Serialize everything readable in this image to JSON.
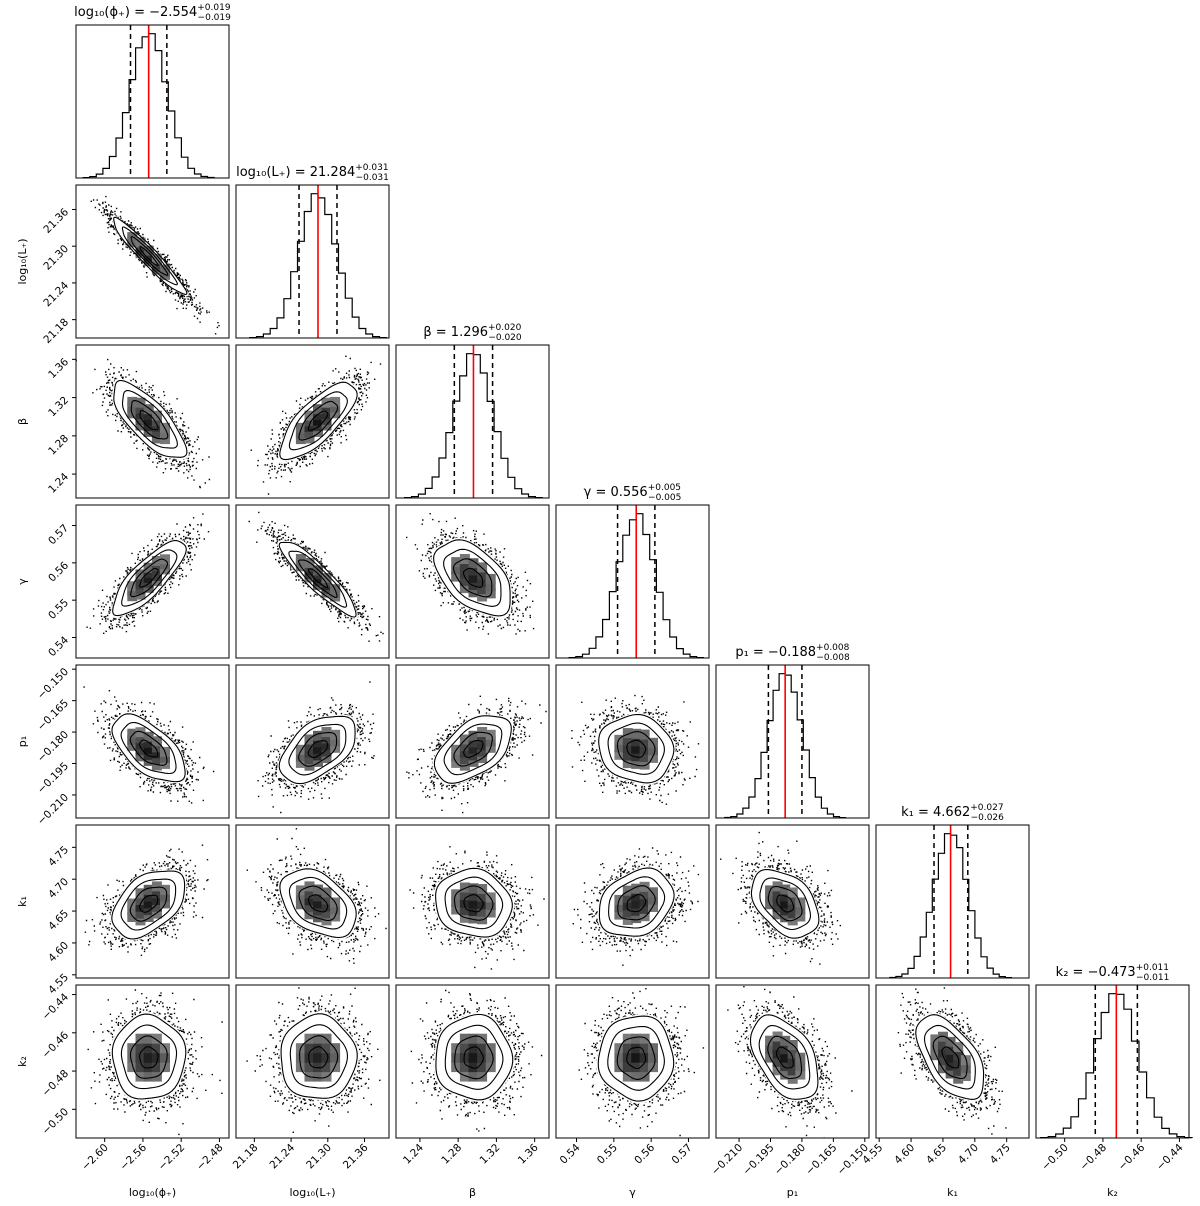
{
  "chart_data": {
    "type": "corner",
    "parameters": [
      {
        "axis_label": "log₁₀(ϕ₊)",
        "title_name": "log₁₀(ϕ₊)",
        "value": "−2.554",
        "plus": "+0.019",
        "minus": "−0.019",
        "median": -2.554,
        "q16": -2.573,
        "q84": -2.535,
        "sigma": 0.019,
        "range": [
          -2.63,
          -2.47
        ],
        "ticks": [
          -2.6,
          -2.56,
          -2.52,
          -2.48
        ],
        "tick_labels": [
          "−2.60",
          "−2.56",
          "−2.52",
          "−2.48"
        ]
      },
      {
        "axis_label": "log₁₀(L₊)",
        "title_name": "log₁₀(L₊)",
        "value": "21.284",
        "plus": "+0.031",
        "minus": "−0.031",
        "median": 21.284,
        "q16": 21.253,
        "q84": 21.315,
        "sigma": 0.031,
        "range": [
          21.15,
          21.4
        ],
        "ticks": [
          21.18,
          21.24,
          21.3,
          21.36
        ],
        "tick_labels": [
          "21.18",
          "21.24",
          "21.30",
          "21.36"
        ]
      },
      {
        "axis_label": "β",
        "title_name": "β",
        "value": "1.296",
        "plus": "+0.020",
        "minus": "−0.020",
        "median": 1.296,
        "q16": 1.276,
        "q84": 1.316,
        "sigma": 0.02,
        "range": [
          1.215,
          1.375
        ],
        "ticks": [
          1.24,
          1.28,
          1.32,
          1.36
        ],
        "tick_labels": [
          "1.24",
          "1.28",
          "1.32",
          "1.36"
        ]
      },
      {
        "axis_label": "γ",
        "title_name": "γ",
        "value": "0.556",
        "plus": "+0.005",
        "minus": "−0.005",
        "median": 0.556,
        "q16": 0.551,
        "q84": 0.561,
        "sigma": 0.005,
        "range": [
          0.5345,
          0.5755
        ],
        "ticks": [
          0.54,
          0.55,
          0.56,
          0.57
        ],
        "tick_labels": [
          "0.54",
          "0.55",
          "0.56",
          "0.57"
        ]
      },
      {
        "axis_label": "p₁",
        "title_name": "p₁",
        "value": "−0.188",
        "plus": "+0.008",
        "minus": "−0.008",
        "median": -0.188,
        "q16": -0.196,
        "q84": -0.18,
        "sigma": 0.008,
        "range": [
          -0.221,
          -0.148
        ],
        "ticks": [
          -0.21,
          -0.195,
          -0.18,
          -0.165,
          -0.15
        ],
        "tick_labels": [
          "−0.210",
          "−0.195",
          "−0.180",
          "−0.165",
          "−0.150"
        ]
      },
      {
        "axis_label": "k₁",
        "title_name": "k₁",
        "value": "4.662",
        "plus": "+0.027",
        "minus": "−0.026",
        "median": 4.662,
        "q16": 4.636,
        "q84": 4.689,
        "sigma": 0.0265,
        "range": [
          4.545,
          4.785
        ],
        "ticks": [
          4.55,
          4.6,
          4.65,
          4.7,
          4.75
        ],
        "tick_labels": [
          "4.55",
          "4.60",
          "4.65",
          "4.70",
          "4.75"
        ]
      },
      {
        "axis_label": "k₂",
        "title_name": "k₂",
        "value": "−0.473",
        "plus": "+0.011",
        "minus": "−0.011",
        "median": -0.473,
        "q16": -0.484,
        "q84": -0.462,
        "sigma": 0.011,
        "range": [
          -0.515,
          -0.435
        ],
        "ticks": [
          -0.5,
          -0.48,
          -0.46,
          -0.44
        ],
        "tick_labels": [
          "−0.50",
          "−0.48",
          "−0.46",
          "−0.44"
        ]
      }
    ],
    "correlations": [
      [
        1.0,
        -0.95,
        -0.75,
        0.8,
        -0.6,
        0.45,
        0.0
      ],
      [
        -0.95,
        1.0,
        0.75,
        -0.9,
        0.5,
        -0.4,
        0.0
      ],
      [
        -0.75,
        0.75,
        1.0,
        -0.5,
        0.5,
        -0.1,
        0.0
      ],
      [
        0.8,
        -0.9,
        -0.5,
        1.0,
        -0.1,
        0.25,
        0.0
      ],
      [
        -0.6,
        0.5,
        0.5,
        -0.1,
        1.0,
        -0.4,
        -0.45
      ],
      [
        0.45,
        -0.4,
        -0.1,
        0.25,
        -0.4,
        1.0,
        -0.55
      ],
      [
        0.0,
        0.0,
        0.0,
        0.0,
        -0.45,
        -0.55,
        1.0
      ]
    ],
    "median_line_color": "#ff0000",
    "quantile_line_style": "dashed black",
    "hist_bins": 20,
    "contour_levels_sigma": [
      0.5,
      1.0,
      1.5,
      2.0
    ]
  }
}
